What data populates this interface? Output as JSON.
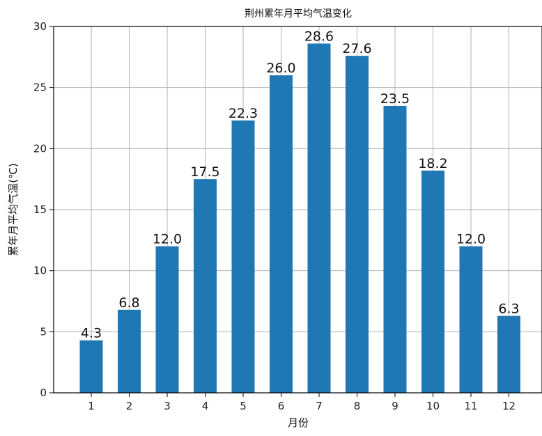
{
  "chart_data": {
    "type": "bar",
    "title": "荆州累年月平均气温变化",
    "xlabel": "月份",
    "ylabel": "累年月平均气温(℃)",
    "categories": [
      "1",
      "2",
      "3",
      "4",
      "5",
      "6",
      "7",
      "8",
      "9",
      "10",
      "11",
      "12"
    ],
    "values": [
      4.3,
      6.8,
      12.0,
      17.5,
      22.3,
      26.0,
      28.6,
      27.6,
      23.5,
      18.2,
      12.0,
      6.3
    ],
    "value_labels": [
      "4.3",
      "6.8",
      "12.0",
      "17.5",
      "22.3",
      "26.0",
      "28.6",
      "27.6",
      "23.5",
      "18.2",
      "12.0",
      "6.3"
    ],
    "ylim": [
      0,
      30
    ],
    "yticks": [
      "0",
      "5",
      "10",
      "15",
      "20",
      "25",
      "30"
    ],
    "grid": true,
    "bar_color": "#1f77b4"
  }
}
